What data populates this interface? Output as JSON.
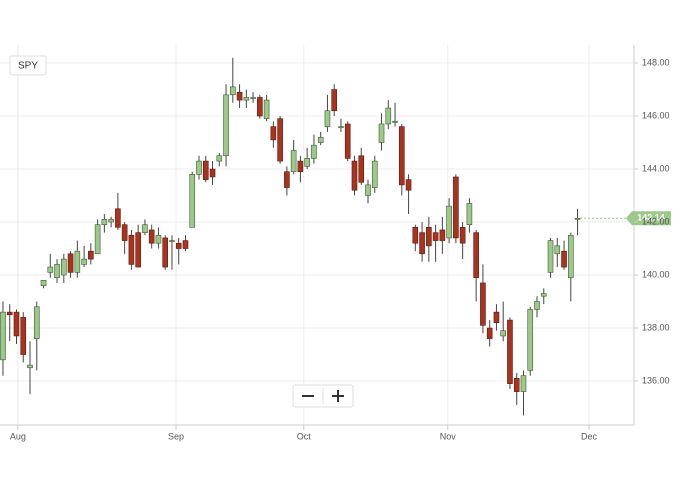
{
  "chart_data": {
    "type": "candlestick",
    "title": "SPY",
    "x": [
      0,
      1,
      2,
      3,
      4,
      5,
      6,
      7,
      8,
      9,
      10,
      11,
      12,
      13,
      14,
      15,
      16,
      17,
      18,
      19,
      20,
      21,
      22,
      23,
      24,
      25,
      26,
      27,
      28,
      29,
      30,
      31,
      32,
      33,
      34,
      35,
      36,
      37,
      38,
      39,
      40,
      41,
      42,
      43,
      44,
      45,
      46,
      47,
      48,
      49,
      50,
      51,
      52,
      53,
      54,
      55,
      56,
      57,
      58,
      59,
      60,
      61,
      62,
      63,
      64,
      65,
      66,
      67,
      68,
      69,
      70,
      71,
      72,
      73,
      74,
      75,
      76,
      77,
      78,
      79,
      80,
      81,
      82,
      83,
      84,
      85
    ],
    "open": [
      136.8,
      138.6,
      138.6,
      138.4,
      136.5,
      137.6,
      139.6,
      140.1,
      139.9,
      140.0,
      140.8,
      140.1,
      140.4,
      140.9,
      140.8,
      141.9,
      142.0,
      142.5,
      141.9,
      141.5,
      141.6,
      141.6,
      141.7,
      141.2,
      141.4,
      141.3,
      141.2,
      141.3,
      141.8,
      143.8,
      144.3,
      144.0,
      144.3,
      144.5,
      146.8,
      146.9,
      146.6,
      146.7,
      146.7,
      145.9,
      145.6,
      145.9,
      143.9,
      143.9,
      144.3,
      144.1,
      144.4,
      145.0,
      145.6,
      147.0,
      145.6,
      145.7,
      144.3,
      144.5,
      143.0,
      143.3,
      145.0,
      145.7,
      145.8,
      145.6,
      143.6,
      141.8,
      141.6,
      141.8,
      141.6,
      141.7,
      141.4,
      143.7,
      141.8,
      141.9,
      141.6,
      139.7,
      138.0,
      138.6,
      137.7,
      138.3,
      136.1,
      135.6,
      136.4,
      138.7,
      139.2,
      140.1,
      140.8,
      140.9,
      139.9,
      142.1
    ],
    "high": [
      139.0,
      138.9,
      138.7,
      138.6,
      137.5,
      139.0,
      139.8,
      140.8,
      140.6,
      140.8,
      140.9,
      141.3,
      141.1,
      141.2,
      142.1,
      142.3,
      142.2,
      143.1,
      142.0,
      141.7,
      141.9,
      142.1,
      141.9,
      141.8,
      141.5,
      141.5,
      141.4,
      141.5,
      143.9,
      144.5,
      144.5,
      144.3,
      144.6,
      147.2,
      148.2,
      147.2,
      147.0,
      146.9,
      146.8,
      146.8,
      145.8,
      146.0,
      144.1,
      145.1,
      144.5,
      144.8,
      145.3,
      145.4,
      146.8,
      147.2,
      145.9,
      145.8,
      144.5,
      144.8,
      143.6,
      144.5,
      146.1,
      146.6,
      146.5,
      145.7,
      143.8,
      141.9,
      142.0,
      142.2,
      141.9,
      142.2,
      142.9,
      143.8,
      142.0,
      142.9,
      141.7,
      140.4,
      138.3,
      138.9,
      139.0,
      138.4,
      136.3,
      136.4,
      138.8,
      139.2,
      139.5,
      141.4,
      141.4,
      141.3,
      141.6,
      142.5
    ],
    "low": [
      136.2,
      137.5,
      137.4,
      136.7,
      135.5,
      136.4,
      139.5,
      139.9,
      139.7,
      139.7,
      139.9,
      139.9,
      140.3,
      140.4,
      140.8,
      141.6,
      141.8,
      141.7,
      140.8,
      140.2,
      140.3,
      141.5,
      141.0,
      141.0,
      140.2,
      140.2,
      140.4,
      140.9,
      141.8,
      143.6,
      143.5,
      143.4,
      144.1,
      144.1,
      146.5,
      146.3,
      146.3,
      146.5,
      145.9,
      145.8,
      144.8,
      144.2,
      143.0,
      143.8,
      143.5,
      144.0,
      144.2,
      144.9,
      145.4,
      146.0,
      145.4,
      144.3,
      143.0,
      143.4,
      142.7,
      143.1,
      144.7,
      145.5,
      145.6,
      143.0,
      142.3,
      140.9,
      140.5,
      140.5,
      140.5,
      140.8,
      141.2,
      141.2,
      140.6,
      141.6,
      139.0,
      137.8,
      137.3,
      137.9,
      137.5,
      135.7,
      135.1,
      134.7,
      136.2,
      138.4,
      138.9,
      139.9,
      140.3,
      140.2,
      139.0,
      141.5
    ],
    "close": [
      138.6,
      138.5,
      137.7,
      137.0,
      136.6,
      138.8,
      139.8,
      140.3,
      140.4,
      140.6,
      140.1,
      140.9,
      140.6,
      140.6,
      141.9,
      142.1,
      142.1,
      141.8,
      141.3,
      140.4,
      140.3,
      141.9,
      141.2,
      141.5,
      140.3,
      141.3,
      141.0,
      141.0,
      143.8,
      144.3,
      143.6,
      143.7,
      144.5,
      146.8,
      147.1,
      146.6,
      146.7,
      146.7,
      146.0,
      146.6,
      145.1,
      144.3,
      143.3,
      144.7,
      143.9,
      144.4,
      144.9,
      145.2,
      146.2,
      146.2,
      145.6,
      144.4,
      143.2,
      143.5,
      143.4,
      144.3,
      145.7,
      146.3,
      145.8,
      143.4,
      143.2,
      141.2,
      140.8,
      141.1,
      141.3,
      141.3,
      142.6,
      141.4,
      141.2,
      142.7,
      139.9,
      138.1,
      137.6,
      138.2,
      137.9,
      135.9,
      135.6,
      136.2,
      138.7,
      139.0,
      139.3,
      141.3,
      141.1,
      140.3,
      141.5,
      142.14
    ],
    "last_value": 142.14,
    "up_color": "#9cc88a",
    "down_color": "#a8341f",
    "xlim": [
      -0.44,
      93.35
    ],
    "xticks": [
      {
        "value": 2.2,
        "label": "Aug"
      },
      {
        "value": 25.6,
        "label": "Sep"
      },
      {
        "value": 44.5,
        "label": "Oct"
      },
      {
        "value": 65.8,
        "label": "Nov"
      },
      {
        "value": 86.7,
        "label": "Dec"
      }
    ],
    "ylim": [
      134.34,
      148.68
    ],
    "yticks": [
      {
        "value": 136,
        "label": "136.00"
      },
      {
        "value": 138,
        "label": "138.00"
      },
      {
        "value": 140,
        "label": "140.00"
      },
      {
        "value": 142,
        "label": "142.00"
      },
      {
        "value": 144,
        "label": "144.00"
      },
      {
        "value": 146,
        "label": "146.00"
      },
      {
        "value": 148,
        "label": "148.00"
      }
    ],
    "grid": true
  }
}
